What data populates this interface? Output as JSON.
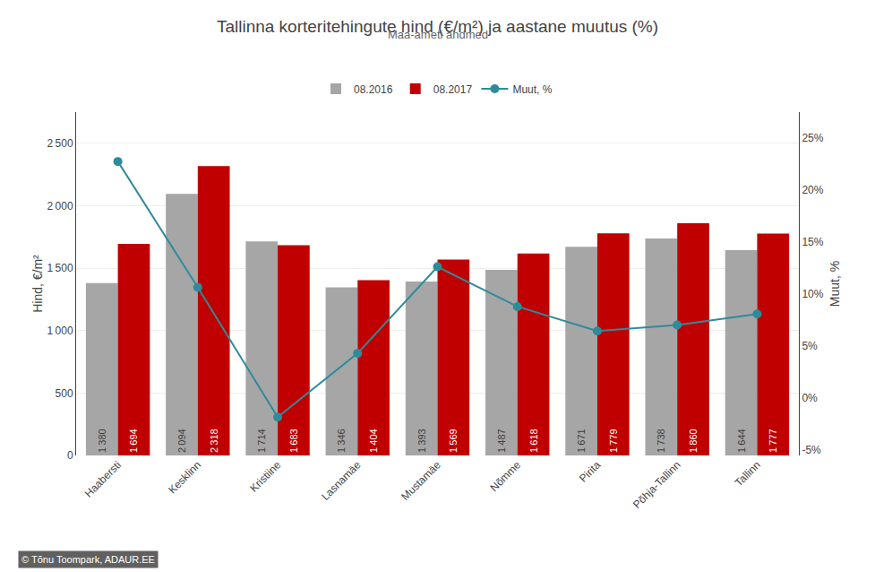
{
  "chart_data": {
    "type": "bar",
    "title": "Tallinna korteritehingute hind (€/m²) ja aastane muutus (%)",
    "subtitle": "Maa-ameti andmed",
    "ylabel": "Hind, €/m²",
    "y2label": "Muut, %",
    "categories": [
      "Haabersti",
      "Kesklinn",
      "Kristiine",
      "Lasnamäe",
      "Mustamäe",
      "Nõmme",
      "Pirita",
      "Põhja-Tallinn",
      "Tallinn"
    ],
    "series": [
      {
        "name": "08.2016",
        "type": "bar",
        "color": "#a6a6a6",
        "values": [
          1380,
          2094,
          1714,
          1346,
          1393,
          1487,
          1671,
          1738,
          1644
        ],
        "value_labels": [
          "1 380",
          "2 094",
          "1 714",
          "1 346",
          "1 393",
          "1 487",
          "1 671",
          "1 738",
          "1 644"
        ],
        "data_labels": true
      },
      {
        "name": "08.2017",
        "type": "bar",
        "color": "#c00000",
        "values": [
          1694,
          2318,
          1683,
          1404,
          1569,
          1618,
          1779,
          1860,
          1777
        ],
        "value_labels": [
          "1 694",
          "2 318",
          "1 683",
          "1 404",
          "1 569",
          "1 618",
          "1 779",
          "1 860",
          "1 777"
        ],
        "data_labels": true
      },
      {
        "name": "Muut, %",
        "type": "line",
        "color": "#2e8b9a",
        "marker": "circle",
        "axis": "y2",
        "values": [
          22.75,
          10.65,
          -1.81,
          4.31,
          12.63,
          8.81,
          6.46,
          7.03,
          8.09
        ]
      }
    ],
    "ylim": [
      0,
      2750
    ],
    "yticks": [
      0,
      500,
      {
        "value": 1000,
        "label": "1 000"
      },
      {
        "value": 1500,
        "label": "1 500"
      },
      {
        "value": 2000,
        "label": "2 000"
      },
      {
        "value": 2500,
        "label": "2 500"
      }
    ],
    "y2lim": [
      -5.5,
      27.5
    ],
    "y2ticks": [
      {
        "value": -5,
        "label": "-5%"
      },
      {
        "value": 0,
        "label": "0%"
      },
      {
        "value": 5,
        "label": "5%"
      },
      {
        "value": 10,
        "label": "10%"
      },
      {
        "value": 15,
        "label": "15%"
      },
      {
        "value": 20,
        "label": "20%"
      },
      {
        "value": 25,
        "label": "25%"
      }
    ],
    "grid": true,
    "legend": "top",
    "annotations": [
      "© Tõnu Toompark, ADAUR.EE"
    ]
  }
}
